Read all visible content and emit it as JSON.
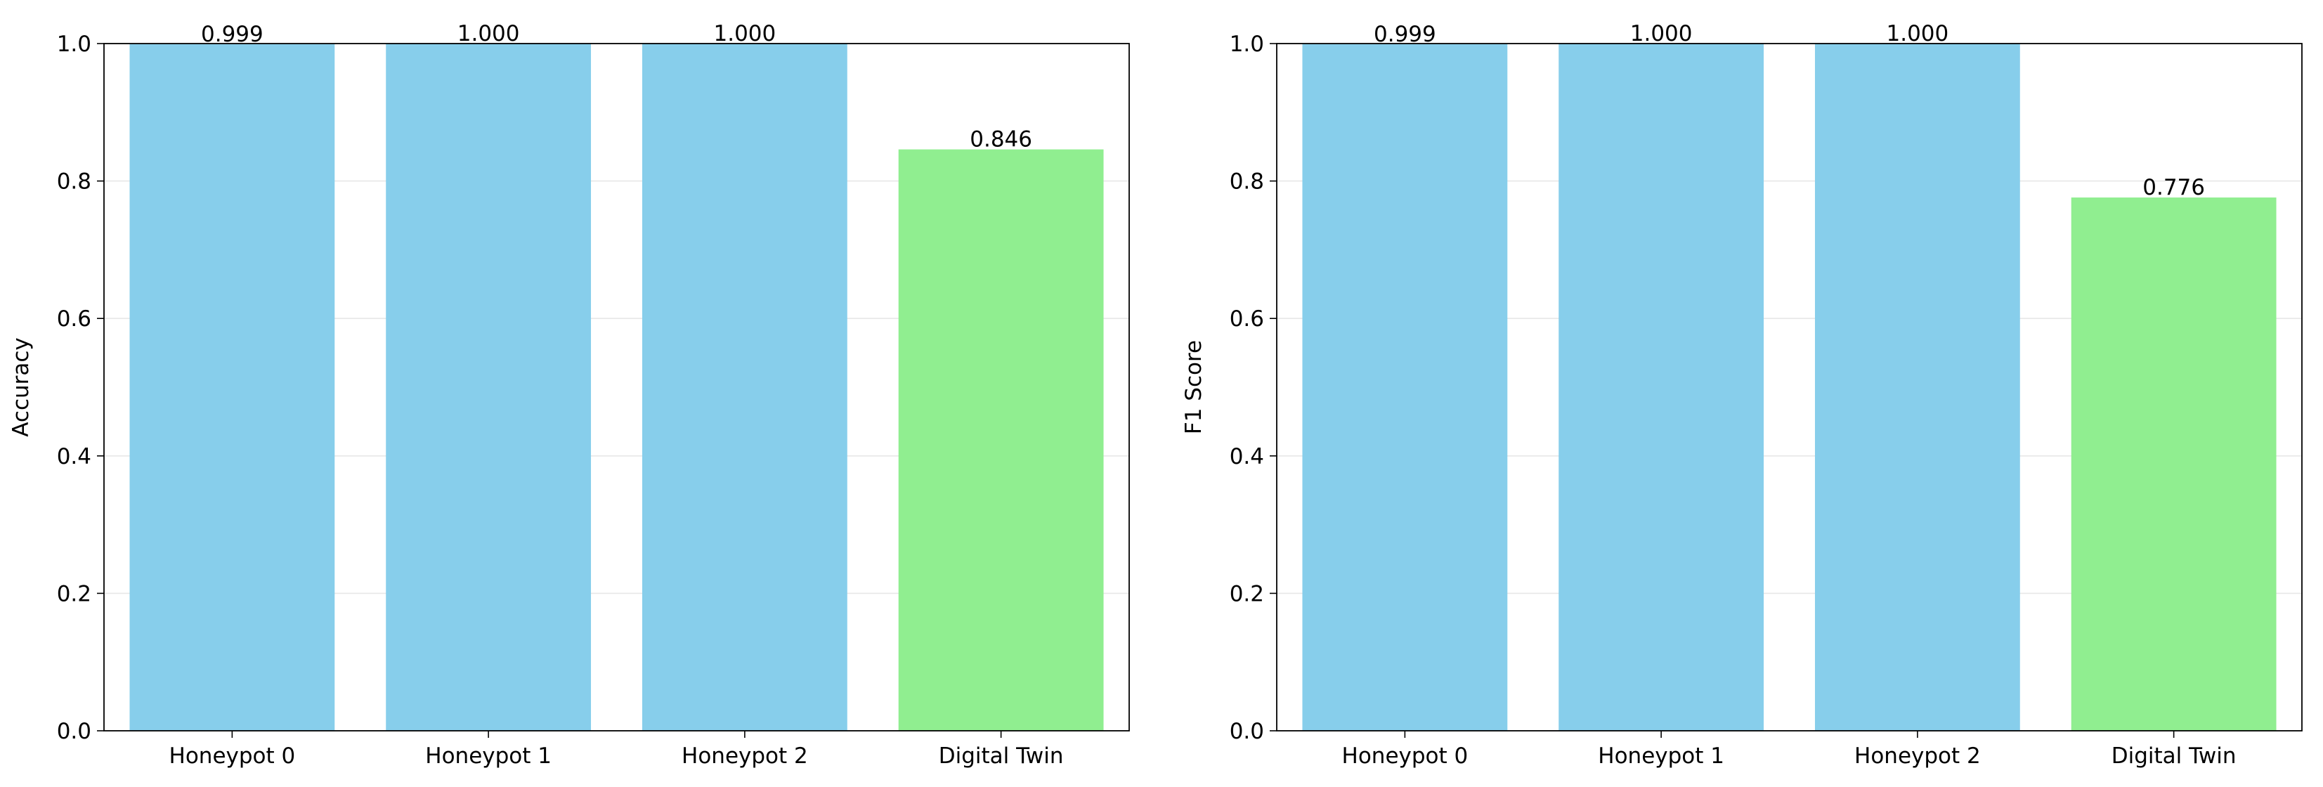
{
  "chart_data": [
    {
      "type": "bar",
      "categories": [
        "Honeypot 0",
        "Honeypot 1",
        "Honeypot 2",
        "Digital Twin"
      ],
      "values": [
        0.999,
        1.0,
        1.0,
        0.846
      ],
      "value_labels": [
        "0.999",
        "1.000",
        "1.000",
        "0.846"
      ],
      "bar_colors": [
        "#87ceeb",
        "#87ceeb",
        "#87ceeb",
        "#90ee90"
      ],
      "title": "",
      "xlabel": "",
      "ylabel": "Accuracy",
      "ylim": [
        0,
        1.0
      ],
      "yticks": [
        "0.0",
        "0.2",
        "0.4",
        "0.6",
        "0.8",
        "1.0"
      ],
      "grid": "horizontal"
    },
    {
      "type": "bar",
      "categories": [
        "Honeypot 0",
        "Honeypot 1",
        "Honeypot 2",
        "Digital Twin"
      ],
      "values": [
        0.999,
        1.0,
        1.0,
        0.776
      ],
      "value_labels": [
        "0.999",
        "1.000",
        "1.000",
        "0.776"
      ],
      "bar_colors": [
        "#87ceeb",
        "#87ceeb",
        "#87ceeb",
        "#90ee90"
      ],
      "title": "",
      "xlabel": "",
      "ylabel": "F1 Score",
      "ylim": [
        0,
        1.0
      ],
      "yticks": [
        "0.0",
        "0.2",
        "0.4",
        "0.6",
        "0.8",
        "1.0"
      ],
      "grid": "horizontal"
    }
  ]
}
